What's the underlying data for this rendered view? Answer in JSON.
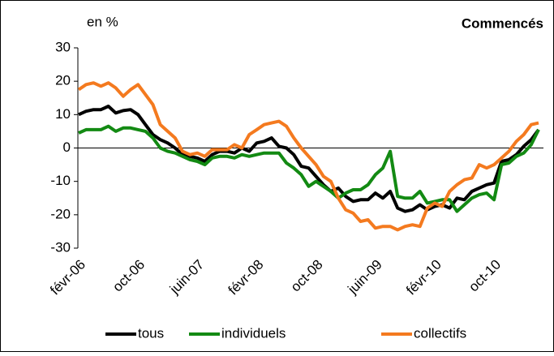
{
  "chart_data": {
    "type": "line",
    "title": "Commencés",
    "ylabel": "en %",
    "categories": [
      "févr-06",
      null,
      null,
      null,
      null,
      null,
      null,
      null,
      "oct-06",
      null,
      null,
      null,
      null,
      null,
      null,
      null,
      "juin-07",
      null,
      null,
      null,
      null,
      null,
      null,
      null,
      "févr-08",
      null,
      null,
      null,
      null,
      null,
      null,
      null,
      "oct-08",
      null,
      null,
      null,
      null,
      null,
      null,
      null,
      "juin-09",
      null,
      null,
      null,
      null,
      null,
      null,
      null,
      "févr-10",
      null,
      null,
      null,
      null,
      null,
      null,
      null,
      "oct-10",
      null,
      null,
      null,
      null,
      null,
      null
    ],
    "series": [
      {
        "name": "tous",
        "color": "#000000",
        "values": [
          10,
          11,
          11.5,
          11.5,
          12.5,
          10.5,
          11.2,
          11.5,
          10,
          7,
          4,
          2.5,
          1.5,
          0,
          -2,
          -2.5,
          -3,
          -4,
          -2,
          -1,
          -1,
          -1.5,
          0,
          -1,
          1.5,
          2,
          3,
          0.5,
          0,
          -2,
          -5.5,
          -6,
          -8.5,
          -11,
          -13,
          -12,
          -14.5,
          -16,
          -15.5,
          -15.5,
          -13.5,
          -15,
          -13,
          -18,
          -19,
          -18.5,
          -17,
          -18.5,
          -17.5,
          -17,
          -18,
          -15,
          -15.5,
          -13,
          -12,
          -11,
          -10.5,
          -4,
          -3.5,
          -2,
          0.5,
          2.5,
          5.5
        ]
      },
      {
        "name": "individuels",
        "color": "#138a13",
        "values": [
          4.5,
          5.5,
          5.5,
          5.5,
          6.5,
          5,
          6,
          6,
          5.5,
          5,
          3,
          0,
          -1,
          -1.5,
          -2.5,
          -3.5,
          -4,
          -5,
          -3,
          -2.5,
          -2.5,
          -3,
          -2,
          -2.5,
          -2,
          -1.5,
          -1.5,
          -1.5,
          -4.5,
          -6,
          -8,
          -11.5,
          -10,
          -11.5,
          -13,
          -15,
          -13.5,
          -12.5,
          -12.5,
          -11,
          -8,
          -6,
          -1,
          -14.5,
          -15,
          -15,
          -13,
          -16.5,
          -16,
          -15.5,
          -15.5,
          -19,
          -17,
          -15,
          -14,
          -13.5,
          -15.5,
          -5,
          -4.5,
          -2.5,
          -1.5,
          1,
          5.5
        ]
      },
      {
        "name": "collectifs",
        "color": "#f47a1f",
        "values": [
          17.5,
          19,
          19.5,
          18.5,
          19.5,
          18,
          15.5,
          17.5,
          19,
          16,
          13,
          7,
          5,
          3,
          -1,
          -2,
          -1.5,
          -2.5,
          -0.5,
          -0.5,
          -0.5,
          1,
          0,
          4,
          5.5,
          7,
          7.5,
          8,
          6.5,
          3,
          0,
          -2.5,
          -5,
          -8.5,
          -10,
          -15,
          -18.5,
          -19.5,
          -22,
          -21.5,
          -24,
          -23.5,
          -23.5,
          -24.5,
          -23.5,
          -23,
          -23.5,
          -18,
          -16.5,
          -17.5,
          -13,
          -11,
          -9.5,
          -9,
          -5,
          -6,
          -5,
          -3,
          -1,
          2,
          4,
          7,
          7.5
        ]
      }
    ],
    "ylim": [
      -30,
      30
    ],
    "yticks": [
      -30,
      -20,
      -10,
      0,
      10,
      20,
      30
    ]
  }
}
